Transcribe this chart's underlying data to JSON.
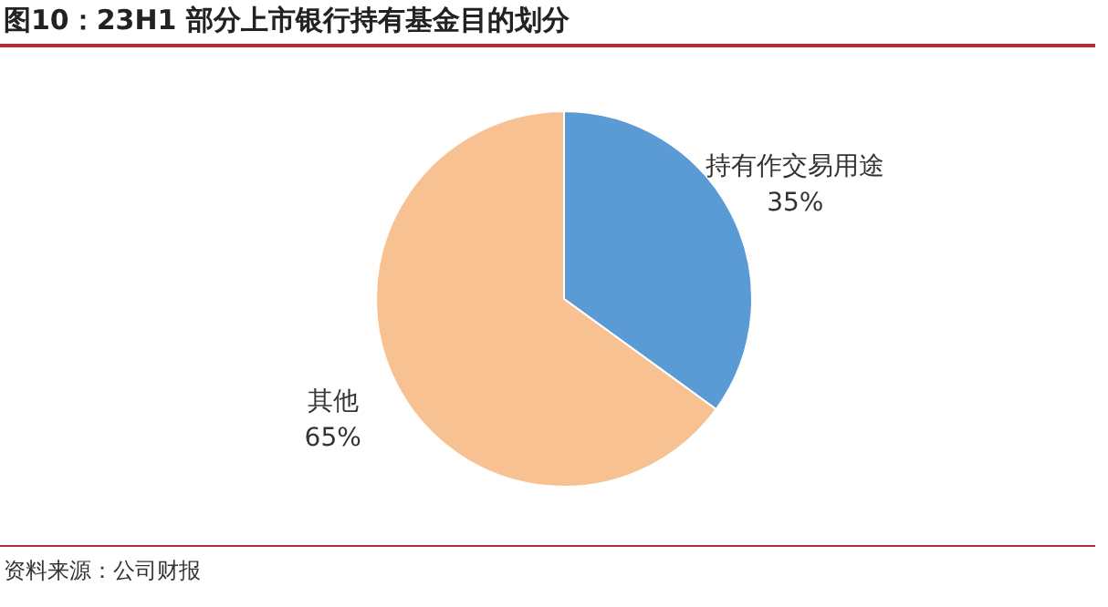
{
  "chart_data": {
    "type": "pie",
    "title": "图10：23H1 部分上市银行持有基金目的划分",
    "categories": [
      "持有作交易用途",
      "其他"
    ],
    "values": [
      35,
      65
    ],
    "value_labels": [
      "35%",
      "65%"
    ],
    "colors": [
      "#5b9bd5",
      "#f8c192"
    ],
    "annotations": [
      "资料来源：公司财报"
    ]
  }
}
